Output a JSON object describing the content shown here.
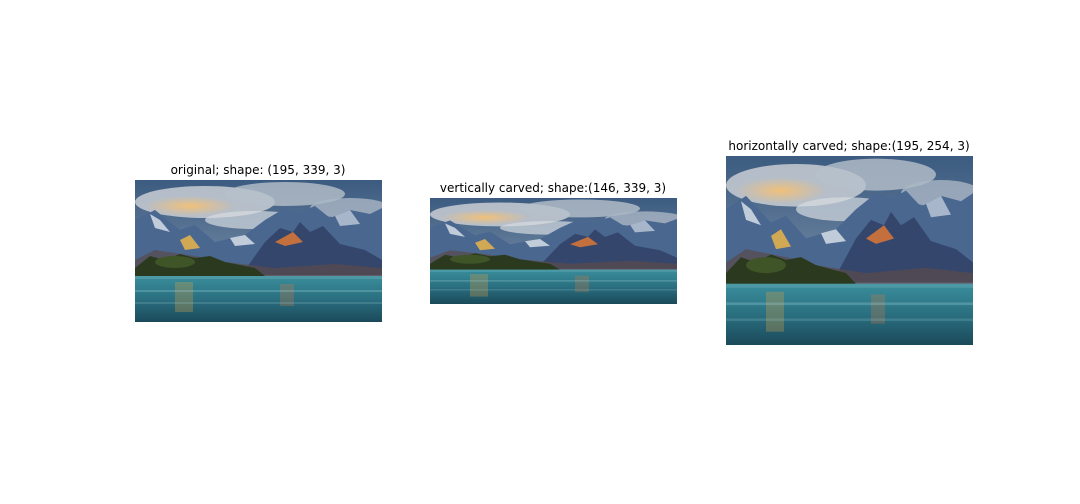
{
  "panels": [
    {
      "title": "original; shape: (195, 339, 3)"
    },
    {
      "title": "vertically carved; shape:(146, 339, 3)"
    },
    {
      "title": "horizontally carved; shape:(195, 254, 3)"
    }
  ],
  "colors": {
    "sky_top": "#3d5f86",
    "cloud": "#c8cfd6",
    "sunset": "#e0a667",
    "mountain_dark": "#34456a",
    "mountain_light": "#5f7ca4",
    "snow": "#dfe6ee",
    "peak_glow": "#d3743a",
    "hill_dark": "#2d3a1e",
    "water_top": "#2f7f8f",
    "water_bottom": "#1d4f60"
  }
}
